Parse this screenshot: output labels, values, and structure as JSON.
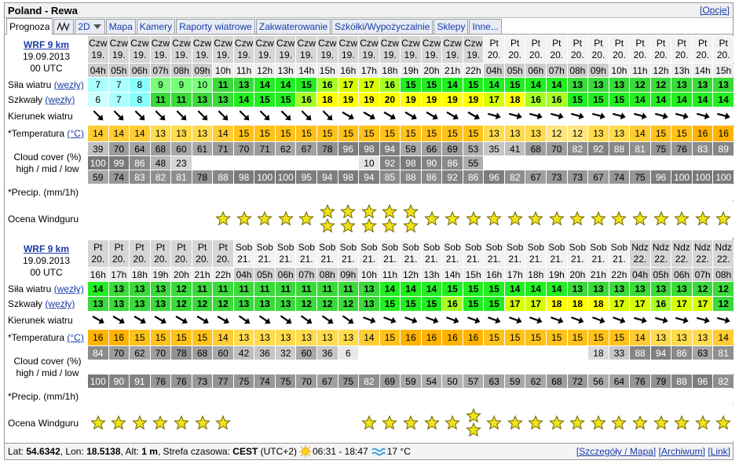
{
  "header": {
    "title": "Poland - Rewa",
    "options": "[Opcje]"
  },
  "tabs": [
    "Prognoza",
    "2D",
    "Mapa",
    "Kamery",
    "Raporty wiatrowe",
    "Zakwaterowanie",
    "Szkółki/Wypożyczalnie",
    "Sklepy",
    "Inne..."
  ],
  "model": {
    "name": "WRF 9 km",
    "date": "19.09.2013",
    "run": "00 UTC"
  },
  "labels": {
    "wind": "Siła wiatru",
    "wind_unit": "(węzły)",
    "gust": "Szkwały",
    "gust_unit": "(węzły)",
    "direction": "Kierunek wiatru",
    "temperature": "*Temperatura",
    "temperature_unit": "(°C)",
    "cloud": "Cloud cover (%)",
    "cloud_levels": "high / mid / low",
    "precip": "*Precip. (mm/1h)",
    "rating": "Ocena Windguru"
  },
  "blocks": [
    {
      "days": [
        "Czw",
        "Czw",
        "Czw",
        "Czw",
        "Czw",
        "Czw",
        "Czw",
        "Czw",
        "Czw",
        "Czw",
        "Czw",
        "Czw",
        "Czw",
        "Czw",
        "Czw",
        "Czw",
        "Czw",
        "Czw",
        "Czw",
        "Pt",
        "Pt",
        "Pt",
        "Pt",
        "Pt",
        "Pt",
        "Pt",
        "Pt",
        "Pt",
        "Pt",
        "Pt",
        "Pt"
      ],
      "dates": [
        "19.",
        "19.",
        "19.",
        "19.",
        "19.",
        "19.",
        "19.",
        "19.",
        "19.",
        "19.",
        "19.",
        "19.",
        "19.",
        "19.",
        "19.",
        "19.",
        "19.",
        "19.",
        "19.",
        "20.",
        "20.",
        "20.",
        "20.",
        "20.",
        "20.",
        "20.",
        "20.",
        "20.",
        "20.",
        "20.",
        "20."
      ],
      "hours": [
        "04h",
        "05h",
        "06h",
        "07h",
        "08h",
        "09h",
        "10h",
        "11h",
        "12h",
        "13h",
        "14h",
        "15h",
        "16h",
        "17h",
        "18h",
        "19h",
        "20h",
        "21h",
        "22h",
        "04h",
        "05h",
        "06h",
        "07h",
        "08h",
        "09h",
        "10h",
        "11h",
        "12h",
        "13h",
        "14h",
        "15h"
      ],
      "wind": [
        7,
        7,
        8,
        9,
        9,
        10,
        11,
        13,
        14,
        14,
        15,
        16,
        17,
        17,
        16,
        15,
        15,
        14,
        15,
        14,
        15,
        14,
        14,
        13,
        13,
        13,
        12,
        12,
        13,
        13,
        13
      ],
      "gusts": [
        6,
        7,
        8,
        11,
        11,
        13,
        13,
        14,
        15,
        15,
        16,
        18,
        19,
        19,
        20,
        19,
        19,
        19,
        19,
        17,
        18,
        16,
        16,
        15,
        15,
        15,
        14,
        14,
        14,
        14,
        14
      ],
      "direction": [
        315,
        315,
        315,
        315,
        315,
        315,
        315,
        315,
        315,
        315,
        315,
        315,
        300,
        300,
        300,
        300,
        300,
        300,
        300,
        285,
        285,
        285,
        285,
        285,
        285,
        285,
        285,
        285,
        285,
        285,
        285
      ],
      "temperature": [
        14,
        14,
        14,
        13,
        13,
        13,
        14,
        15,
        15,
        15,
        15,
        15,
        15,
        15,
        15,
        15,
        15,
        15,
        15,
        13,
        13,
        13,
        12,
        12,
        13,
        13,
        14,
        15,
        15,
        16,
        16
      ],
      "cloud_high": [
        39,
        70,
        64,
        68,
        60,
        61,
        71,
        70,
        71,
        62,
        67,
        78,
        96,
        98,
        94,
        59,
        66,
        69,
        53,
        35,
        41,
        68,
        70,
        82,
        92,
        88,
        81,
        75,
        76,
        83,
        89
      ],
      "cloud_mid": [
        100,
        99,
        86,
        48,
        23,
        null,
        null,
        null,
        null,
        null,
        null,
        null,
        null,
        10,
        92,
        98,
        90,
        86,
        55,
        null,
        null,
        null,
        null,
        null,
        null,
        null,
        null,
        null,
        null,
        null,
        null
      ],
      "cloud_low": [
        59,
        74,
        83,
        82,
        81,
        78,
        88,
        98,
        100,
        100,
        95,
        94,
        98,
        94,
        85,
        88,
        86,
        92,
        86,
        96,
        82,
        67,
        73,
        73,
        67,
        74,
        75,
        96,
        100,
        100,
        100
      ],
      "rating": [
        0,
        0,
        0,
        0,
        0,
        0,
        1,
        1,
        1,
        1,
        1,
        2,
        2,
        2,
        2,
        2,
        1,
        1,
        1,
        1,
        1,
        1,
        1,
        1,
        1,
        1,
        1,
        1,
        1,
        1,
        1
      ]
    },
    {
      "days": [
        "Pt",
        "Pt",
        "Pt",
        "Pt",
        "Pt",
        "Pt",
        "Pt",
        "Sob",
        "Sob",
        "Sob",
        "Sob",
        "Sob",
        "Sob",
        "Sob",
        "Sob",
        "Sob",
        "Sob",
        "Sob",
        "Sob",
        "Sob",
        "Sob",
        "Sob",
        "Sob",
        "Sob",
        "Sob",
        "Sob",
        "Ndz",
        "Ndz",
        "Ndz",
        "Ndz",
        "Ndz"
      ],
      "dates": [
        "20.",
        "20.",
        "20.",
        "20.",
        "20.",
        "20.",
        "20.",
        "21.",
        "21.",
        "21.",
        "21.",
        "21.",
        "21.",
        "21.",
        "21.",
        "21.",
        "21.",
        "21.",
        "21.",
        "21.",
        "21.",
        "21.",
        "21.",
        "21.",
        "21.",
        "21.",
        "22.",
        "22.",
        "22.",
        "22.",
        "22."
      ],
      "hours": [
        "16h",
        "17h",
        "18h",
        "19h",
        "20h",
        "21h",
        "22h",
        "04h",
        "05h",
        "06h",
        "07h",
        "08h",
        "09h",
        "10h",
        "11h",
        "12h",
        "13h",
        "14h",
        "15h",
        "16h",
        "17h",
        "18h",
        "19h",
        "20h",
        "21h",
        "22h",
        "04h",
        "05h",
        "06h",
        "07h",
        "08h"
      ],
      "wind": [
        14,
        13,
        13,
        13,
        12,
        11,
        11,
        11,
        11,
        11,
        11,
        11,
        11,
        13,
        14,
        14,
        14,
        15,
        15,
        15,
        14,
        14,
        14,
        13,
        13,
        13,
        13,
        13,
        13,
        12,
        12
      ],
      "gusts": [
        13,
        13,
        13,
        13,
        12,
        12,
        12,
        13,
        13,
        13,
        12,
        12,
        12,
        13,
        15,
        15,
        15,
        16,
        15,
        15,
        17,
        17,
        18,
        18,
        18,
        17,
        17,
        16,
        17,
        17,
        12
      ],
      "direction": [
        300,
        300,
        300,
        300,
        300,
        300,
        300,
        305,
        305,
        305,
        305,
        305,
        305,
        290,
        290,
        290,
        290,
        290,
        290,
        290,
        290,
        290,
        290,
        290,
        290,
        290,
        285,
        285,
        285,
        285,
        285
      ],
      "temperature": [
        16,
        16,
        15,
        15,
        15,
        15,
        14,
        13,
        13,
        13,
        13,
        13,
        13,
        14,
        15,
        16,
        16,
        16,
        16,
        15,
        15,
        15,
        15,
        15,
        15,
        15,
        14,
        13,
        13,
        13,
        14
      ],
      "cloud_high": [
        84,
        70,
        62,
        70,
        78,
        68,
        60,
        42,
        36,
        32,
        60,
        36,
        6,
        null,
        null,
        null,
        null,
        null,
        null,
        null,
        null,
        null,
        null,
        null,
        18,
        33,
        88,
        94,
        86,
        63,
        81
      ],
      "cloud_low": [
        100,
        90,
        91,
        76,
        76,
        73,
        77,
        75,
        74,
        75,
        70,
        67,
        75,
        82,
        69,
        59,
        54,
        50,
        57,
        63,
        59,
        62,
        68,
        72,
        56,
        64,
        76,
        79,
        88,
        96,
        82
      ],
      "rating": [
        1,
        1,
        1,
        1,
        1,
        1,
        1,
        0,
        0,
        0,
        0,
        0,
        0,
        1,
        1,
        1,
        1,
        1,
        2,
        1,
        1,
        1,
        1,
        1,
        1,
        1,
        1,
        1,
        1,
        1,
        1
      ]
    }
  ],
  "footer": {
    "lat_label": "Lat:",
    "lat": "54.6342",
    "lon_label": ", Lon:",
    "lon": "18.5138",
    "alt_label": ", Alt:",
    "alt": "1 m",
    "tz_label": ", Strefa czasowa:",
    "tz": "CEST",
    "tz_offset": "(UTC+2)",
    "sun": "06:31 - 18:47",
    "water": "17 °C",
    "links": [
      "[Szczegóły / Mapa]",
      "[Archiwum]",
      "[Link]"
    ]
  }
}
